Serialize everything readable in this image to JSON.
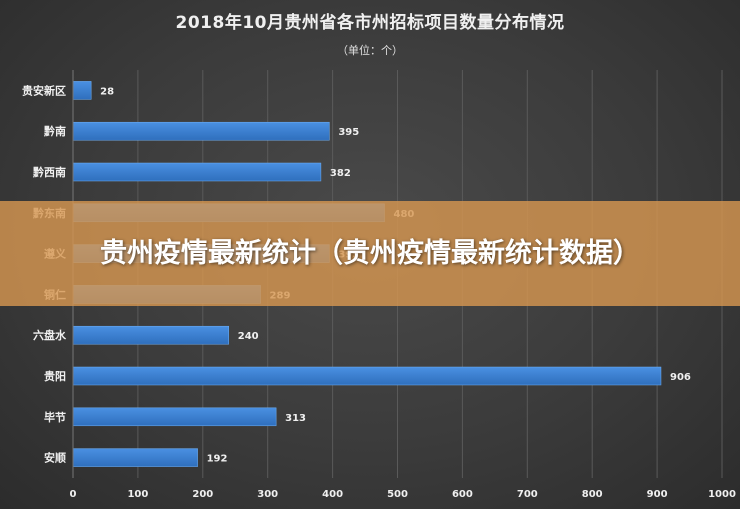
{
  "colors": {
    "bar": "#4a90e2",
    "bar_dark": "#2f6fbd",
    "grid": "#5a5a5a",
    "text": "#f0f0f0",
    "banner": "#d69650"
  },
  "overlay": {
    "banner_text": "贵州疫情最新统计（贵州疫情最新统计数据）"
  },
  "chart_data": {
    "type": "bar",
    "orientation": "horizontal",
    "title": "2018年10月贵州省各市州招标项目数量分布情况",
    "subtitle": "（单位：个）",
    "categories": [
      "贵安新区",
      "黔南",
      "黔西南",
      "黔东南",
      "遵义",
      "铜仁",
      "六盘水",
      "贵阳",
      "毕节",
      "安顺"
    ],
    "values": [
      28,
      395,
      382,
      480,
      395,
      289,
      240,
      906,
      313,
      192
    ],
    "xlim": [
      0,
      1000
    ],
    "xticks": [
      0,
      100,
      200,
      300,
      400,
      500,
      600,
      700,
      800,
      900,
      1000
    ],
    "grid": true,
    "legend": "none"
  }
}
